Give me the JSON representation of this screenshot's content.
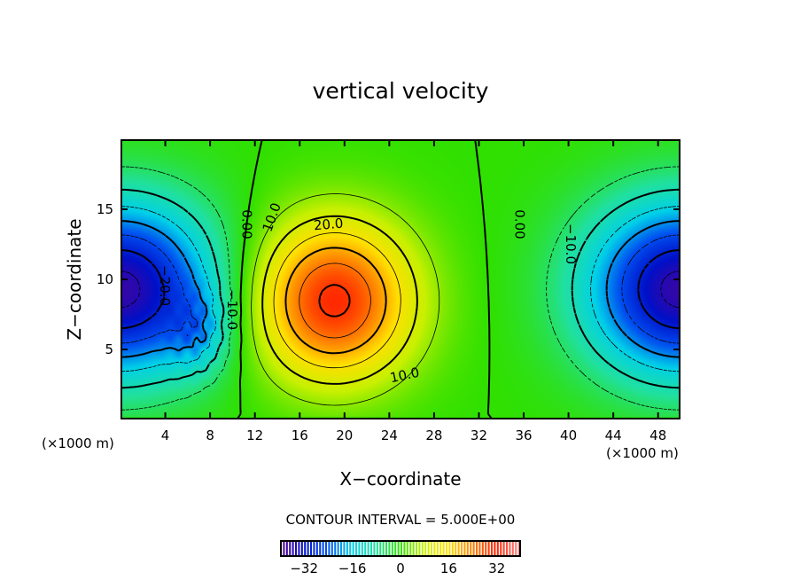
{
  "chart_data": {
    "type": "heatmap",
    "subtype": "filled-contour",
    "title": "vertical velocity",
    "xlabel": "X−coordinate",
    "ylabel": "Z−coordinate",
    "x_unit": "(×1000 m)",
    "z_unit": "(×1000 m)",
    "xlim": [
      0,
      50
    ],
    "ylim": [
      0,
      20
    ],
    "xticks": [
      "4",
      "8",
      "12",
      "16",
      "20",
      "24",
      "28",
      "32",
      "36",
      "40",
      "44",
      "48"
    ],
    "xtick_values": [
      4,
      8,
      12,
      16,
      20,
      24,
      28,
      32,
      36,
      40,
      44,
      48
    ],
    "yticks": [
      "5",
      "10",
      "15"
    ],
    "ytick_values": [
      5,
      10,
      15
    ],
    "contour_interval_label": "CONTOUR INTERVAL = 5.000E+00",
    "contour_interval": 5,
    "contour_labels": [
      "0.00",
      "0.00",
      "10.0",
      "10.0",
      "20.0",
      "−20.0",
      "−10.0",
      "−10.0"
    ],
    "features": [
      {
        "name": "updraft maximum",
        "x": 19,
        "z": 8,
        "value": 28
      },
      {
        "name": "downdraft minimum left",
        "x": 0,
        "z": 9,
        "value": -35
      },
      {
        "name": "downdraft minimum right",
        "x": 50,
        "z": 9,
        "value": -35
      }
    ],
    "colorbar": {
      "range": [
        -40,
        40
      ],
      "ticks": [
        "−32",
        "−16",
        "0",
        "16",
        "32"
      ],
      "tick_values": [
        -32,
        -16,
        0,
        16,
        32
      ],
      "colors": [
        "#5a0090",
        "#0010c8",
        "#0050f0",
        "#00d0e8",
        "#20e0a0",
        "#30e000",
        "#c8f000",
        "#ffe000",
        "#ff8000",
        "#ff2000",
        "#ff9090"
      ]
    }
  }
}
